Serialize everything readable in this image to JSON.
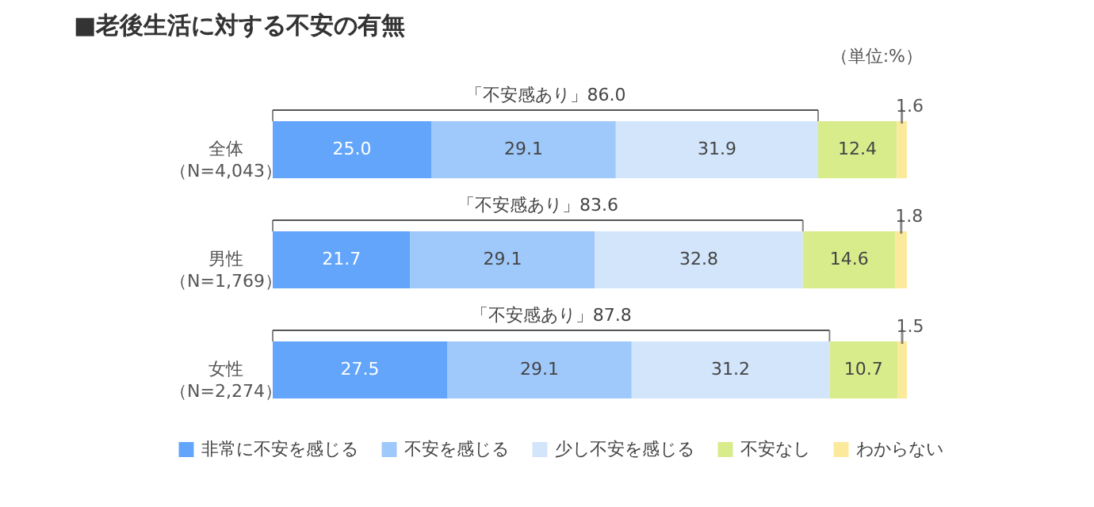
{
  "chart_data": {
    "type": "bar",
    "orientation": "horizontal",
    "stacked": true,
    "title": "■老後生活に対する不安の有無",
    "categories": [
      "全体（N=4,043）",
      "男性（N=1,769）",
      "女性（N=2,274）"
    ],
    "series": [
      {
        "name": "非常に不安を感じる",
        "color": "#62a5fb",
        "values": [
          25.0,
          21.7,
          27.5
        ],
        "value_labels": [
          "25.0",
          "21.7",
          "27.5"
        ]
      },
      {
        "name": "不安を感じる",
        "color": "#9fc8fb",
        "values": [
          29.1,
          29.1,
          29.1
        ],
        "value_labels": [
          "29.1",
          "29.1",
          "29.1"
        ]
      },
      {
        "name": "少し不安を感じる",
        "color": "#d3e5fb",
        "values": [
          31.9,
          32.8,
          31.2
        ],
        "value_labels": [
          "31.9",
          "32.8",
          "31.2"
        ]
      },
      {
        "name": "不安なし",
        "color": "#d9ec8c",
        "values": [
          12.4,
          14.6,
          10.7
        ],
        "value_labels": [
          "12.4",
          "14.6",
          "10.7"
        ]
      },
      {
        "name": "わからない",
        "color": "#fcea9c",
        "values": [
          1.6,
          1.8,
          1.5
        ],
        "value_labels": [
          "1.6",
          "1.8",
          "1.5"
        ]
      }
    ],
    "xlim": [
      0,
      100
    ],
    "legend": "bottom",
    "tick_labels": "y",
    "annotations": [
      "（単位:%）",
      "「不安感あり」86.0",
      "「不安感あり」83.6",
      "「不安感あり」87.8"
    ]
  }
}
